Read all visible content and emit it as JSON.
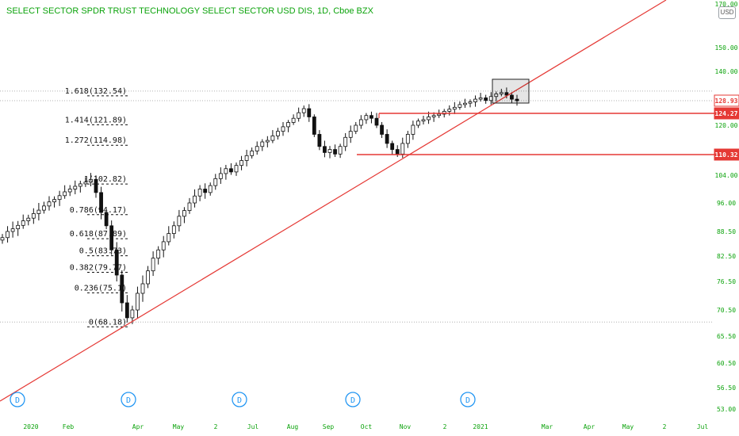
{
  "header": {
    "title": "SELECT SECTOR SPDR TRUST TECHNOLOGY SELECT SECTOR USD DIS, 1D, Cboe BZX",
    "currency_button": "USD"
  },
  "colors": {
    "title": "#0ca30c",
    "axis_text": "#0ca30c",
    "candle": "#111111",
    "trendline": "#e53935",
    "price_tag": "#e53935",
    "fib": "#111111",
    "dividend": "#2196f3"
  },
  "chart_data": {
    "type": "candlestick",
    "y_axis_ticks": [
      "170.00",
      "150.00",
      "140.00",
      "128.93",
      "124.27",
      "120.00",
      "110.32",
      "104.00",
      "96.00",
      "88.50",
      "82.50",
      "76.50",
      "70.50",
      "65.50",
      "60.50",
      "56.50",
      "53.00"
    ],
    "x_axis_ticks": [
      "2020",
      "Feb",
      "Apr",
      "May",
      "2",
      "Jul",
      "Aug",
      "Sep",
      "Oct",
      "Nov",
      "2",
      "2021",
      "Mar",
      "Apr",
      "May",
      "2",
      "Jul"
    ],
    "price_tags": [
      {
        "value": "128.93",
        "style": "outline"
      },
      {
        "value": "124.27",
        "style": "solid"
      },
      {
        "value": "110.32",
        "style": "solid"
      }
    ],
    "fibonacci": [
      {
        "label": "1.618(132.54)",
        "level": 1.618,
        "price": 132.54
      },
      {
        "label": "1.414(121.89)",
        "level": 1.414,
        "price": 121.89
      },
      {
        "label": "1.272(114.98)",
        "level": 1.272,
        "price": 114.98
      },
      {
        "label": "1(102.82)",
        "level": 1,
        "price": 102.82
      },
      {
        "label": "0.786(94.17)",
        "level": 0.786,
        "price": 94.17
      },
      {
        "label": "0.618(87.89)",
        "level": 0.618,
        "price": 87.89
      },
      {
        "label": "0.5(83.73)",
        "level": 0.5,
        "price": 83.73
      },
      {
        "label": "0.382(79.77)",
        "level": 0.382,
        "price": 79.77
      },
      {
        "label": "0.236(75.1)",
        "level": 0.236,
        "price": 75.1
      },
      {
        "label": "0(68.18)",
        "level": 0,
        "price": 68.18
      }
    ],
    "dividend_marker": "D",
    "dividend_count": 5,
    "series": [
      {
        "values": [
          87.0,
          88.5,
          89.2,
          90.1,
          91.3,
          92.0,
          93.2,
          94.1,
          95.2,
          96.3,
          97.0,
          98.1,
          99.2,
          100.0,
          100.8,
          101.5,
          102.0,
          102.8,
          99.0,
          93.5,
          90.0,
          84.0,
          78.0,
          72.0,
          69.0,
          70.5,
          74.0,
          76.0,
          79.0,
          82.0,
          84.0,
          86.0,
          88.0,
          90.0,
          92.5,
          94.0,
          96.0,
          98.0,
          100.0,
          99.0,
          101.0,
          103.0,
          104.5,
          106.0,
          105.0,
          107.0,
          108.5,
          110.0,
          111.5,
          113.0,
          114.5,
          115.0,
          116.5,
          118.0,
          119.5,
          121.0,
          122.5,
          124.5,
          126.0,
          123.0,
          117.0,
          113.0,
          111.0,
          112.0,
          110.5,
          113.0,
          116.0,
          118.0,
          120.0,
          122.0,
          123.5,
          122.5,
          120.0,
          117.0,
          114.0,
          112.0,
          110.5,
          114.0,
          117.0,
          120.0,
          121.5,
          122.0,
          123.0,
          123.5,
          124.0,
          125.0,
          125.8,
          126.5,
          127.5,
          128.0,
          128.5,
          129.5,
          130.0,
          129.0,
          130.5,
          131.5,
          132.0,
          131.0,
          129.5,
          128.9
        ]
      }
    ]
  }
}
